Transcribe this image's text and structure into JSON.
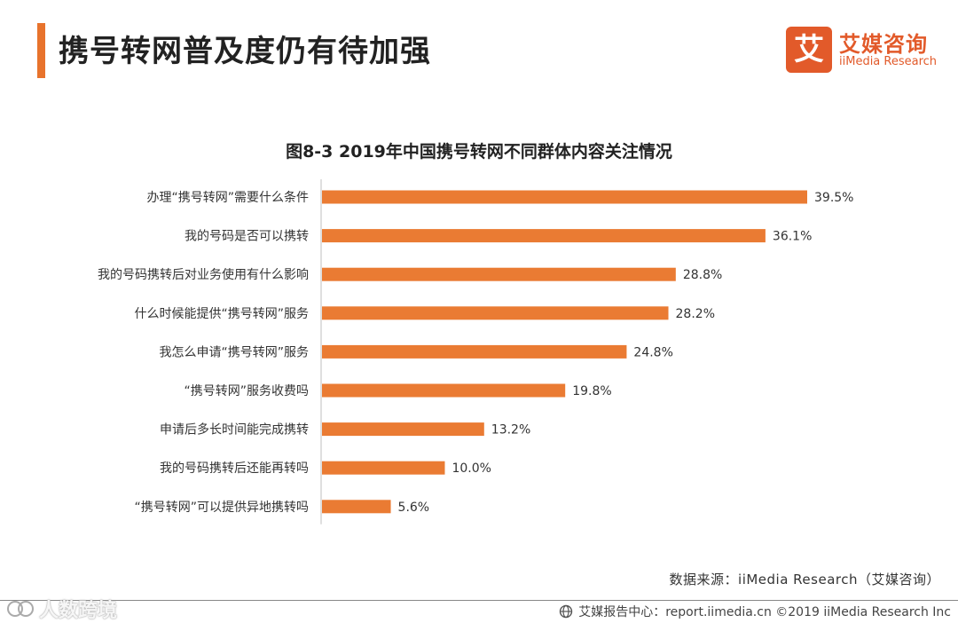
{
  "header": {
    "title": "携号转网普及度仍有待加强"
  },
  "logo": {
    "mark": "艾",
    "name_cn": "艾媒咨询",
    "name_en": "iiMedia Research"
  },
  "colors": {
    "accent": "#e8732c",
    "bar": "#ea7b33",
    "brand": "#e25a2a",
    "axis": "#bfbfbf"
  },
  "chart_data": {
    "type": "bar",
    "orientation": "horizontal",
    "title": "图8-3 2019年中国携号转网不同群体内容关注情况",
    "categories": [
      "办理“携号转网”需要什么条件",
      "我的号码是否可以携转",
      "我的号码携转后对业务使用有什么影响",
      "什么时候能提供“携号转网”服务",
      "我怎么申请“携号转网”服务",
      "“携号转网”服务收费吗",
      "申请后多长时间能完成携转",
      "我的号码携转后还能再转吗",
      "“携号转网”可以提供异地携转吗"
    ],
    "values": [
      39.5,
      36.1,
      28.8,
      28.2,
      24.8,
      19.8,
      13.2,
      10.0,
      5.6
    ],
    "value_labels": [
      "39.5%",
      "36.1%",
      "28.8%",
      "28.2%",
      "24.8%",
      "19.8%",
      "13.2%",
      "10.0%",
      "5.6%"
    ],
    "unit": "%",
    "xlim": [
      0,
      40
    ],
    "grid": false,
    "legend": "none"
  },
  "source": {
    "text": "数据来源：iiMedia Research（艾媒咨询）"
  },
  "footer": {
    "text": "艾媒报告中心：report.iimedia.cn ©2019 iiMedia Research Inc",
    "icon": "globe-icon"
  },
  "watermark": {
    "text": "人数跨境"
  }
}
